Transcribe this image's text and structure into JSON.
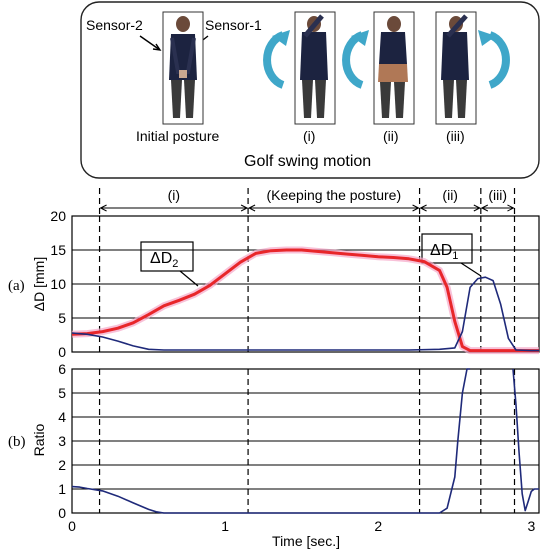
{
  "figure": {
    "sensor2_label": "Sensor-2",
    "sensor1_label": "Sensor-1",
    "initial_caption": "Initial posture",
    "steps": [
      "(i)",
      "(ii)",
      "(iii)"
    ],
    "motion_title": "Golf swing motion"
  },
  "phases": {
    "p1": "(i)",
    "p2": "(Keeping the posture)",
    "p3": "(ii)",
    "p4": "(iii)",
    "boundaries_sec": [
      0.18,
      1.15,
      2.27,
      2.67,
      2.89
    ]
  },
  "chart_data": [
    {
      "type": "line",
      "panel_label": "(a)",
      "ylabel": "ΔD [mm]",
      "ylim": [
        0,
        20
      ],
      "yticks": [
        "0",
        "5",
        "10",
        "15",
        "20"
      ],
      "grid": true,
      "series": [
        {
          "name": "ΔD2",
          "color": "#e8262a",
          "x": [
            0,
            0.1,
            0.2,
            0.3,
            0.4,
            0.5,
            0.6,
            0.7,
            0.8,
            0.9,
            1.0,
            1.1,
            1.2,
            1.3,
            1.4,
            1.5,
            1.6,
            1.7,
            1.8,
            1.9,
            2.0,
            2.1,
            2.2,
            2.3,
            2.4,
            2.45,
            2.5,
            2.55,
            2.6,
            2.7,
            2.8,
            2.9,
            3.0,
            3.05
          ],
          "y": [
            2.6,
            2.7,
            3.0,
            3.5,
            4.3,
            5.5,
            6.8,
            7.6,
            8.5,
            9.8,
            11.5,
            13.2,
            14.5,
            14.9,
            15.0,
            15.0,
            14.8,
            14.6,
            14.4,
            14.2,
            14.0,
            13.9,
            13.7,
            13.3,
            12.0,
            9.5,
            4.5,
            0.8,
            0.2,
            0.2,
            0.2,
            0.2,
            0.2,
            0.2
          ]
        },
        {
          "name": "ΔD1",
          "color": "#1f2a7a",
          "x": [
            0,
            0.1,
            0.2,
            0.3,
            0.4,
            0.5,
            0.6,
            0.8,
            1.0,
            1.2,
            1.5,
            1.8,
            2.0,
            2.2,
            2.4,
            2.5,
            2.55,
            2.6,
            2.65,
            2.7,
            2.75,
            2.8,
            2.85,
            2.9,
            3.0,
            3.05
          ],
          "y": [
            2.8,
            2.6,
            2.2,
            1.6,
            0.9,
            0.4,
            0.3,
            0.3,
            0.3,
            0.3,
            0.3,
            0.3,
            0.3,
            0.3,
            0.4,
            0.6,
            3.0,
            9.5,
            10.8,
            11.0,
            10.5,
            7.0,
            2.0,
            0.3,
            0.2,
            0.2
          ]
        }
      ],
      "annotations": [
        {
          "base": "ΔD",
          "sub": "2"
        },
        {
          "base": "ΔD",
          "sub": "1"
        }
      ]
    },
    {
      "type": "line",
      "panel_label": "(b)",
      "ylabel": "Ratio",
      "xlabel": "Time [sec.]",
      "xlim": [
        0,
        3.05
      ],
      "ylim": [
        0,
        6
      ],
      "xticks": [
        "0",
        "1",
        "2",
        "3"
      ],
      "yticks": [
        "0",
        "1",
        "2",
        "3",
        "4",
        "5",
        "6"
      ],
      "grid": true,
      "series": [
        {
          "color": "#1f2a7a",
          "x": [
            0,
            0.05,
            0.1,
            0.2,
            0.3,
            0.4,
            0.5,
            0.55,
            0.6,
            0.8,
            1.0,
            1.5,
            2.0,
            2.4,
            2.45,
            2.5,
            2.52,
            2.55,
            2.58,
            2.6
          ],
          "y": [
            1.1,
            1.08,
            1.02,
            0.92,
            0.7,
            0.42,
            0.15,
            0.05,
            0.0,
            0.0,
            0.0,
            0.0,
            0.0,
            0.0,
            0.2,
            1.5,
            3.0,
            5.0,
            6.0,
            6.0
          ]
        },
        {
          "color": "#1f2a7a",
          "x": [
            2.88,
            2.9,
            2.92,
            2.94,
            2.96,
            2.98,
            3.0,
            3.02,
            3.05
          ],
          "y": [
            6.0,
            4.5,
            2.5,
            0.8,
            0.1,
            0.5,
            0.9,
            1.0,
            1.0
          ]
        }
      ]
    }
  ]
}
